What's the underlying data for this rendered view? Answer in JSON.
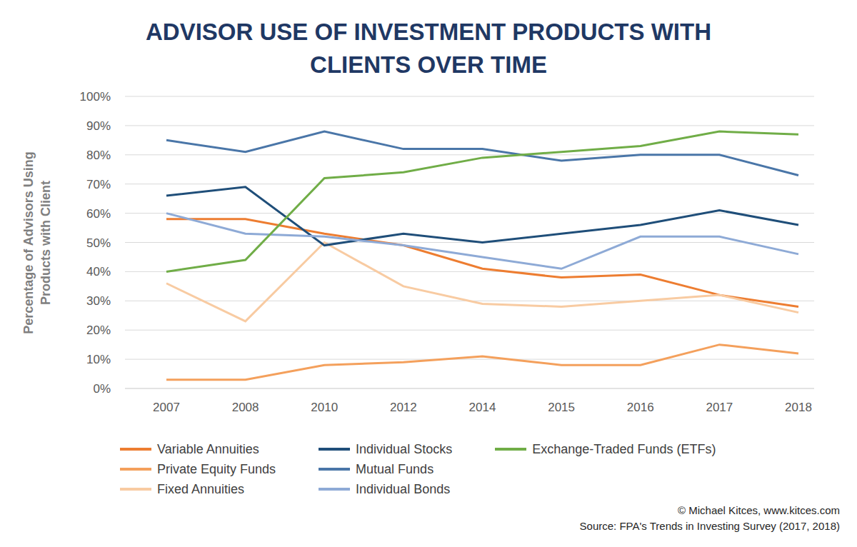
{
  "chart_data": {
    "type": "line",
    "title": "ADVISOR USE OF INVESTMENT PRODUCTS WITH CLIENTS OVER TIME",
    "ylabel": "Percentage of Advisors Using Products with Client",
    "categories": [
      "2007",
      "2008",
      "2010",
      "2012",
      "2014",
      "2015",
      "2016",
      "2017",
      "2018"
    ],
    "series": [
      {
        "name": "Variable Annuities",
        "color": "#ed7d31",
        "values": [
          58,
          58,
          53,
          49,
          41,
          38,
          39,
          32,
          28
        ]
      },
      {
        "name": "Private Equity Funds",
        "color": "#f4a05c",
        "values": [
          3,
          3,
          8,
          9,
          11,
          8,
          8,
          15,
          12
        ]
      },
      {
        "name": "Fixed Annuities",
        "color": "#f8cba2",
        "values": [
          36,
          23,
          50,
          35,
          29,
          28,
          30,
          32,
          26
        ]
      },
      {
        "name": "Individual Stocks",
        "color": "#1f4e79",
        "values": [
          66,
          69,
          49,
          53,
          50,
          53,
          56,
          61,
          56
        ]
      },
      {
        "name": "Mutual Funds",
        "color": "#4a76a8",
        "values": [
          85,
          81,
          88,
          82,
          82,
          78,
          80,
          80,
          73
        ]
      },
      {
        "name": "Individual Bonds",
        "color": "#8eaad6",
        "values": [
          60,
          53,
          52,
          49,
          45,
          41,
          52,
          52,
          46
        ]
      },
      {
        "name": "Exchange-Traded Funds (ETFs)",
        "color": "#70ad47",
        "values": [
          40,
          44,
          72,
          74,
          79,
          81,
          83,
          88,
          87
        ]
      }
    ],
    "ylim": [
      0,
      100
    ],
    "yticks": [
      {
        "value": 0,
        "label": "0%"
      },
      {
        "value": 10,
        "label": "10%"
      },
      {
        "value": 20,
        "label": "20%"
      },
      {
        "value": 30,
        "label": "30%"
      },
      {
        "value": 40,
        "label": "40%"
      },
      {
        "value": 50,
        "label": "50%"
      },
      {
        "value": 60,
        "label": "60%"
      },
      {
        "value": 70,
        "label": "70%"
      },
      {
        "value": 80,
        "label": "80%"
      },
      {
        "value": 90,
        "label": "90%"
      },
      {
        "value": 100,
        "label": "100%"
      }
    ],
    "grid": true,
    "legend": "bottom",
    "annotations": [
      "© Michael Kitces, www.kitces.com",
      "Source: FPA's Trends in Investing Survey (2017, 2018)"
    ]
  }
}
